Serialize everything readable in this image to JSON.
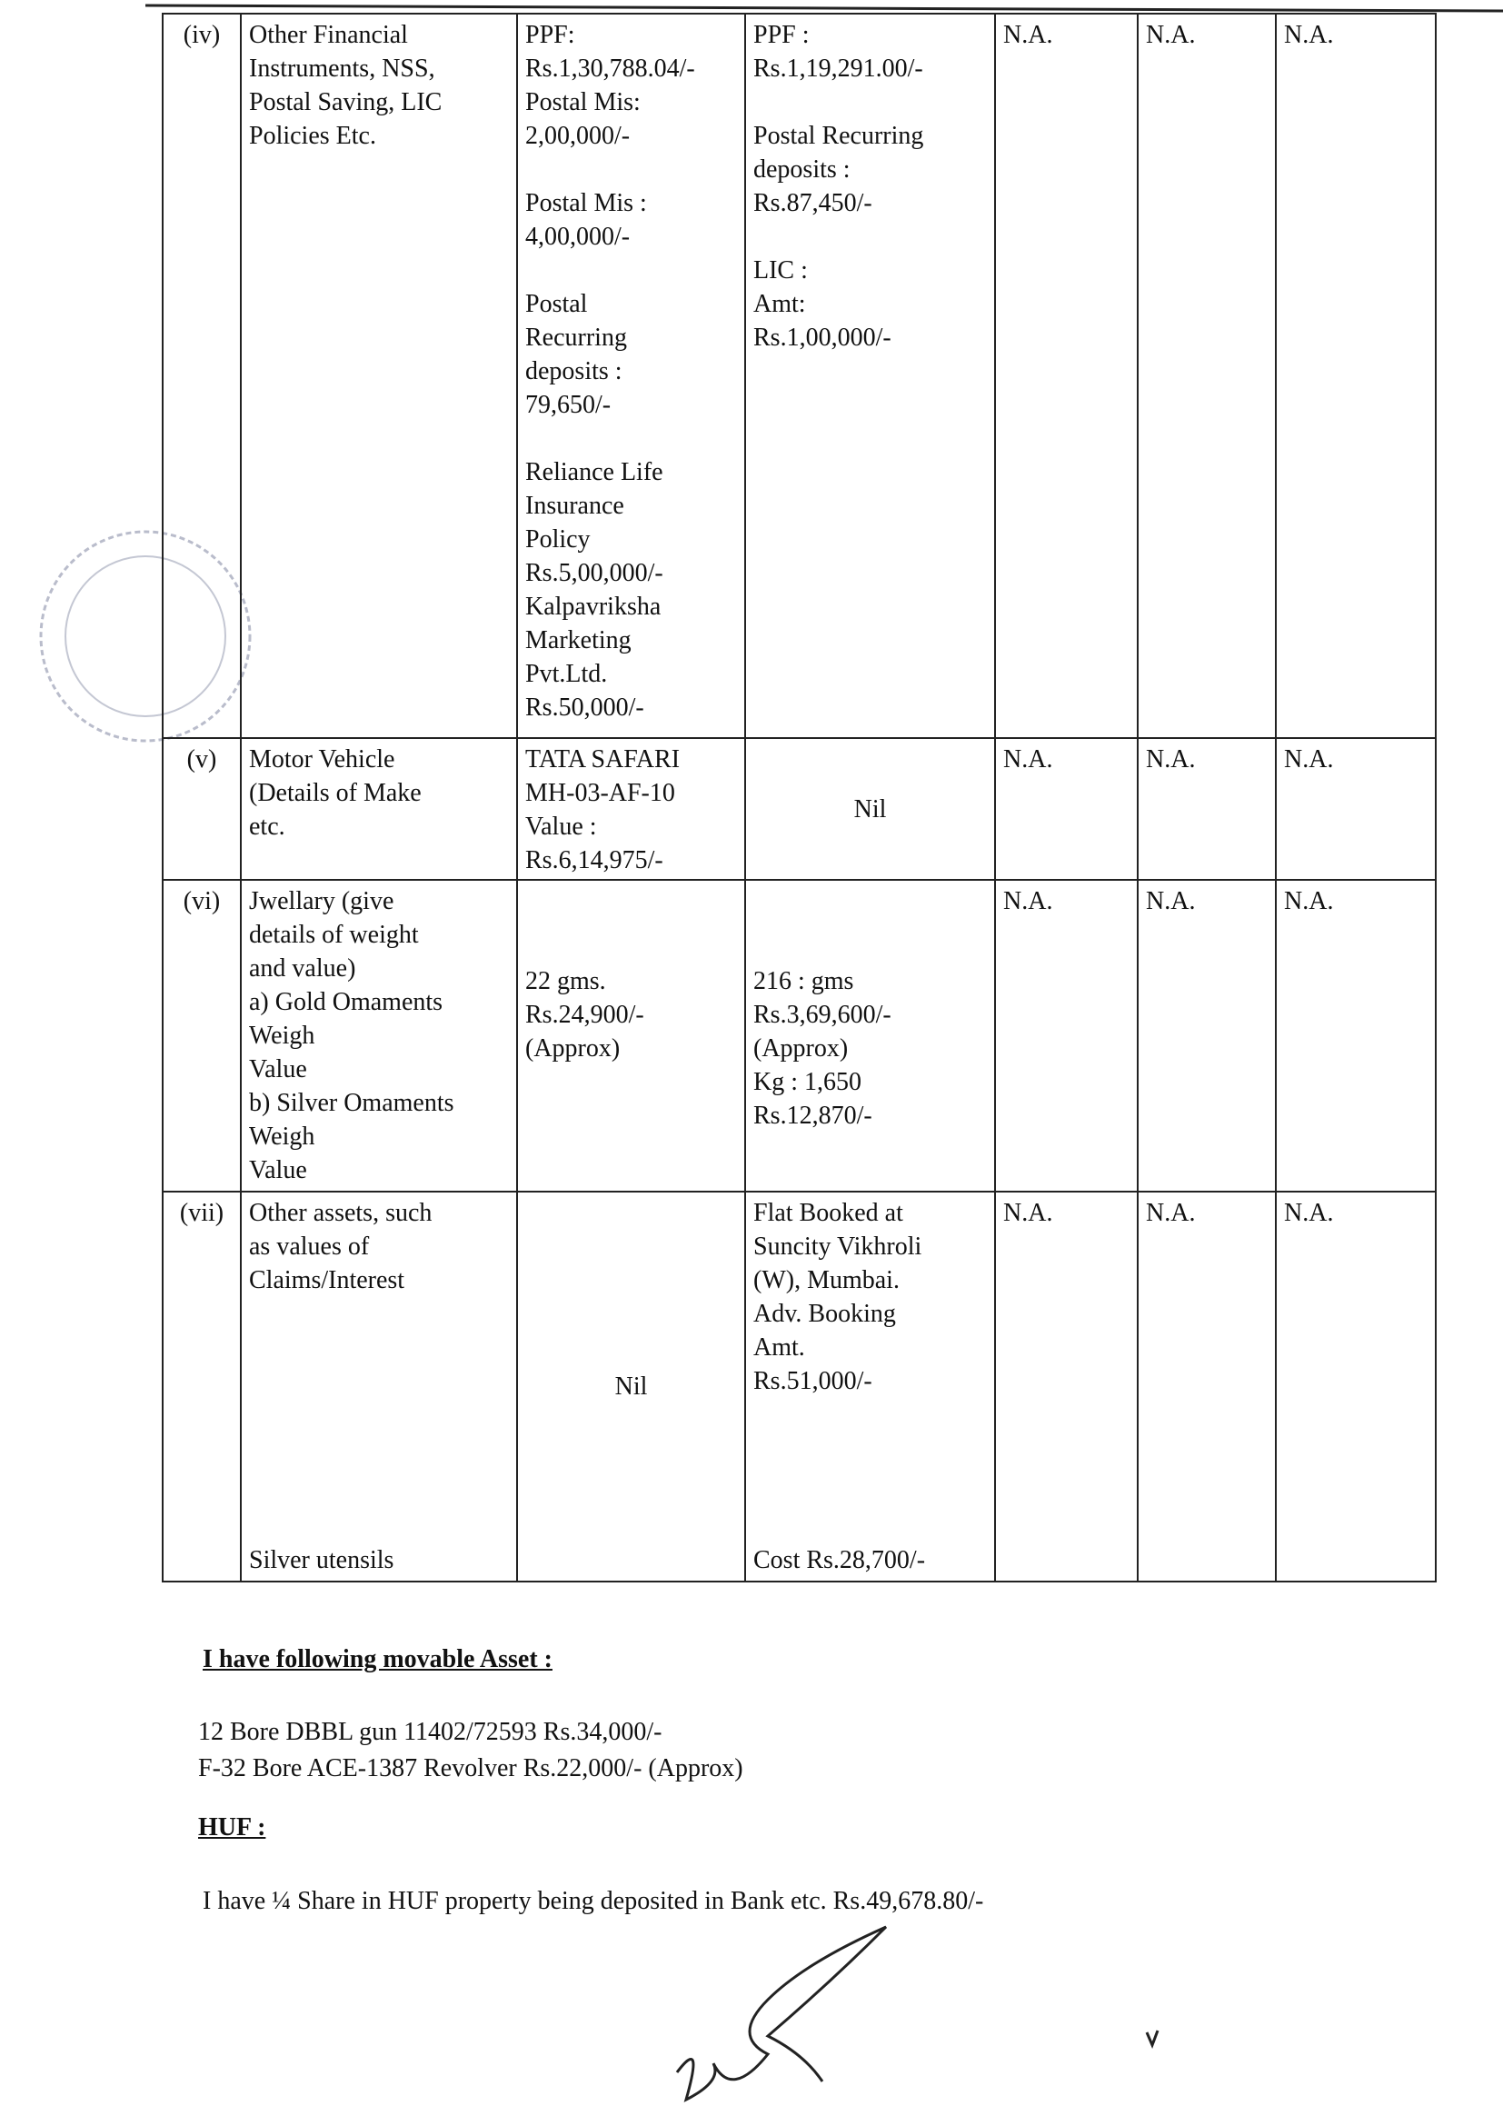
{
  "table": {
    "rows": [
      {
        "num": "(iv)",
        "description": [
          [
            "Other Financial",
            "Instruments, NSS,",
            "Postal Saving, LIC",
            "Policies Etc."
          ]
        ],
        "self": [
          [
            "PPF:",
            "Rs.1,30,788.04/-",
            "Postal Mis:",
            "2,00,000/-"
          ],
          [
            "Postal Mis :",
            "4,00,000/-"
          ],
          [
            "Postal",
            "Recurring",
            "deposits :",
            "79,650/-"
          ],
          [
            "Reliance Life",
            "Insurance",
            "Policy",
            "Rs.5,00,000/-",
            "Kalpavriksha",
            "Marketing",
            "Pvt.Ltd.",
            "Rs.50,000/-"
          ]
        ],
        "spouse": [
          [
            "PPF :",
            "Rs.1,19,291.00/-"
          ],
          [
            "Postal Recurring",
            "deposits :",
            "Rs.87,450/-"
          ],
          [
            "LIC :",
            "Amt:",
            "Rs.1,00,000/-"
          ]
        ],
        "dependent_1": [
          [
            "N.A."
          ]
        ],
        "dependent_2": [
          [
            "N.A."
          ]
        ],
        "dependent_3": [
          [
            "N.A."
          ]
        ]
      },
      {
        "num": "(v)",
        "description": [
          [
            "Motor Vehicle",
            "(Details of Make",
            "etc."
          ]
        ],
        "self": [
          [
            "TATA SAFARI",
            "MH-03-AF-10",
            "Value :",
            "Rs.6,14,975/-"
          ]
        ],
        "spouse": [
          [
            "Nil"
          ]
        ],
        "dependent_1": [
          [
            "N.A."
          ]
        ],
        "dependent_2": [
          [
            "N.A."
          ]
        ],
        "dependent_3": [
          [
            "N.A."
          ]
        ]
      },
      {
        "num": "(vi)",
        "description": [
          [
            "Jwellary (give",
            "details of weight",
            "and value)",
            "a) Gold Omaments",
            "Weigh",
            "Value",
            "b) Silver Omaments",
            "Weigh",
            "Value"
          ]
        ],
        "self": [
          [
            "22 gms.",
            "Rs.24,900/-",
            "(Approx)"
          ]
        ],
        "spouse": [
          [
            "216 : gms",
            "Rs.3,69,600/-",
            "(Approx)",
            "Kg : 1,650",
            "Rs.12,870/-"
          ]
        ],
        "dependent_1": [
          [
            "N.A."
          ]
        ],
        "dependent_2": [
          [
            "N.A."
          ]
        ],
        "dependent_3": [
          [
            "N.A."
          ]
        ]
      },
      {
        "num": "(vii)",
        "description": [
          [
            "Other assets, such",
            "as values of",
            "Claims/Interest"
          ],
          [
            "Silver utensils"
          ]
        ],
        "self": [
          [
            "Nil"
          ]
        ],
        "spouse": [
          [
            "Flat Booked at",
            "Suncity Vikhroli",
            "(W), Mumbai.",
            "Adv. Booking",
            "Amt.",
            "Rs.51,000/-"
          ],
          [
            "Cost Rs.28,700/-"
          ]
        ],
        "dependent_1": [
          [
            "N.A."
          ]
        ],
        "dependent_2": [
          [
            "N.A."
          ]
        ],
        "dependent_3": [
          [
            "N.A."
          ]
        ]
      }
    ]
  },
  "movable_assets": {
    "heading": "I have following movable Asset :",
    "items": [
      "12 Bore DBBL gun 11402/72593 Rs.34,000/-",
      "F-32 Bore ACE-1387 Revolver Rs.22,000/- (Approx)"
    ]
  },
  "huf": {
    "heading": "HUF :",
    "text": "I have ¼ Share in HUF property  being deposited in Bank etc. Rs.49,678.80/-"
  }
}
